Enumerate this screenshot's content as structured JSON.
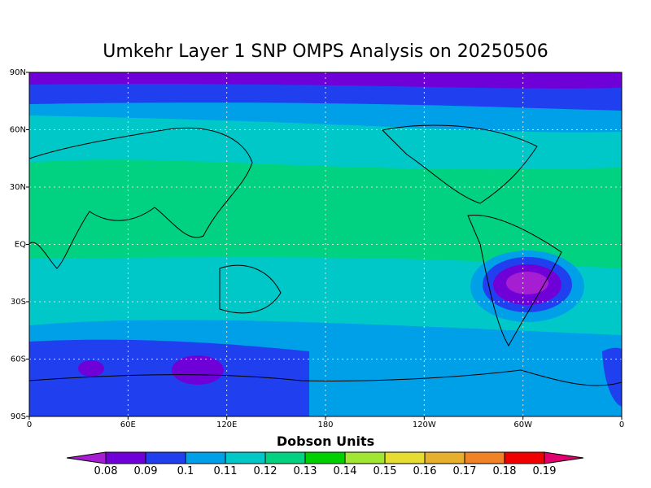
{
  "title": "Umkehr Layer 1 SNP OMPS Analysis on 20250506",
  "map": {
    "xlim": [
      0,
      360
    ],
    "ylim": [
      -90,
      90
    ],
    "grid": true,
    "xticks": [
      {
        "value": 0,
        "label": "0"
      },
      {
        "value": 60,
        "label": "60E"
      },
      {
        "value": 120,
        "label": "120E"
      },
      180,
      {
        "value": 240,
        "label": "120W"
      },
      {
        "value": 300,
        "label": "60W"
      },
      {
        "value": 360,
        "label": "0"
      }
    ],
    "yticks": [
      {
        "value": 90,
        "label": "90N"
      },
      {
        "value": 60,
        "label": "60N"
      },
      {
        "value": 30,
        "label": "30N"
      },
      {
        "value": 0,
        "label": "EQ"
      },
      {
        "value": -30,
        "label": "30S"
      },
      {
        "value": -60,
        "label": "60S"
      },
      {
        "value": -90,
        "label": "90S"
      }
    ]
  },
  "colorbar": {
    "title": "Dobson Units",
    "levels": [
      0.08,
      0.09,
      0.1,
      0.11,
      0.12,
      0.13,
      0.14,
      0.15,
      0.16,
      0.17,
      0.18,
      0.19
    ],
    "colors": [
      "#a51ed2",
      "#7000d8",
      "#2040f0",
      "#00a0e8",
      "#00c8c8",
      "#00d282",
      "#00d000",
      "#a0e632",
      "#e6dc32",
      "#e6af2d",
      "#f08228",
      "#f00000",
      "#e0006e"
    ]
  }
}
